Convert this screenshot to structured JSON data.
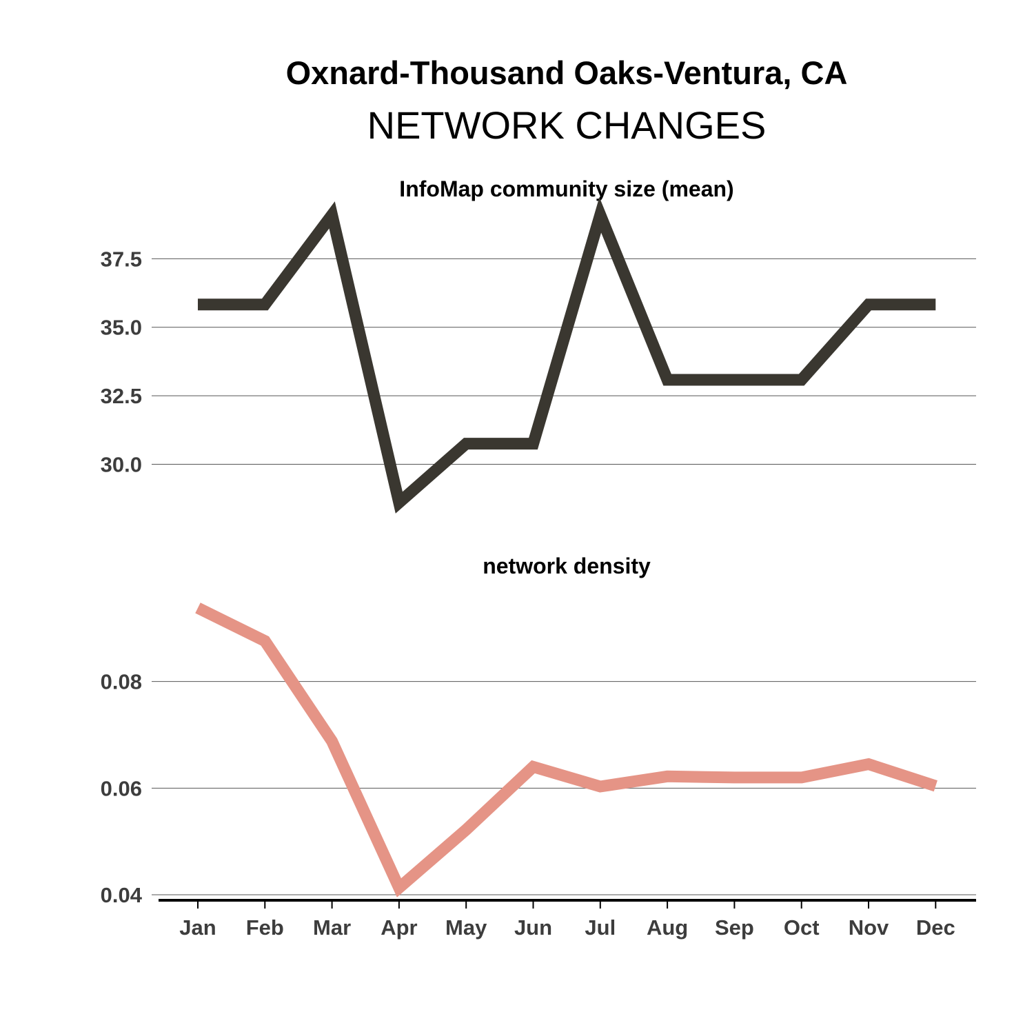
{
  "title": "Oxnard-Thousand Oaks-Ventura, CA",
  "subtitle": "NETWORK CHANGES",
  "chart_data": [
    {
      "type": "line",
      "title": "InfoMap community size (mean)",
      "color": "#3a3730",
      "categories": [
        "Jan",
        "Feb",
        "Mar",
        "Apr",
        "May",
        "Jun",
        "Jul",
        "Aug",
        "Sep",
        "Oct",
        "Nov",
        "Dec"
      ],
      "series": [
        {
          "values": [
            35.83,
            35.83,
            39.1,
            28.6,
            30.75,
            30.75,
            39.1,
            33.08,
            33.08,
            33.08,
            35.83,
            35.83
          ]
        }
      ],
      "yticks": [
        30.0,
        32.5,
        35.0,
        37.5
      ],
      "ytick_labels": [
        "30.0",
        "32.5",
        "35.0",
        "37.5"
      ],
      "ylim": [
        28.2,
        40.0
      ],
      "grid": true
    },
    {
      "type": "line",
      "title": "network density",
      "color": "#e59486",
      "categories": [
        "Jan",
        "Feb",
        "Mar",
        "Apr",
        "May",
        "Jun",
        "Jul",
        "Aug",
        "Sep",
        "Oct",
        "Nov",
        "Dec"
      ],
      "series": [
        {
          "values": [
            0.0938,
            0.0876,
            0.0688,
            0.0413,
            0.0522,
            0.064,
            0.0603,
            0.0622,
            0.062,
            0.062,
            0.0645,
            0.0604
          ]
        }
      ],
      "yticks": [
        0.04,
        0.06,
        0.08
      ],
      "ytick_labels": [
        "0.04",
        "0.06",
        "0.08"
      ],
      "ylim": [
        0.04,
        0.1
      ],
      "grid": true
    }
  ]
}
